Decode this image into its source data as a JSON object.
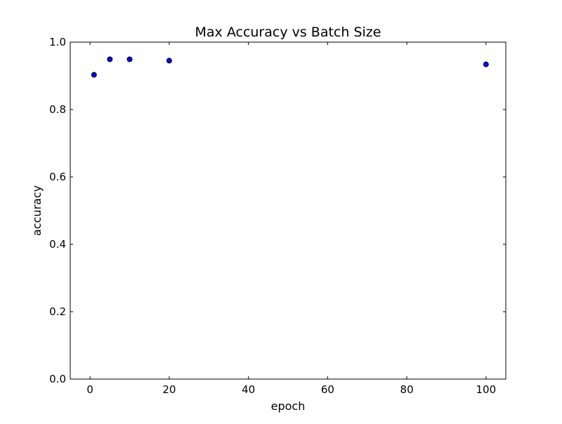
{
  "chart_data": {
    "type": "scatter",
    "title": "Max Accuracy vs Batch Size",
    "xlabel": "epoch",
    "ylabel": "accuracy",
    "xlim": [
      -5,
      105
    ],
    "ylim": [
      0.0,
      1.0
    ],
    "x_ticks": [
      "0",
      "20",
      "40",
      "60",
      "80",
      "100"
    ],
    "y_ticks": [
      "0.0",
      "0.2",
      "0.4",
      "0.6",
      "0.8",
      "1.0"
    ],
    "grid": false,
    "legend": "none",
    "marker_color": "#0000ff",
    "marker_edge_color": "#000000",
    "series": [
      {
        "x": [
          1,
          5,
          10,
          20,
          100
        ],
        "y": [
          0.903,
          0.949,
          0.949,
          0.945,
          0.934
        ]
      }
    ]
  }
}
